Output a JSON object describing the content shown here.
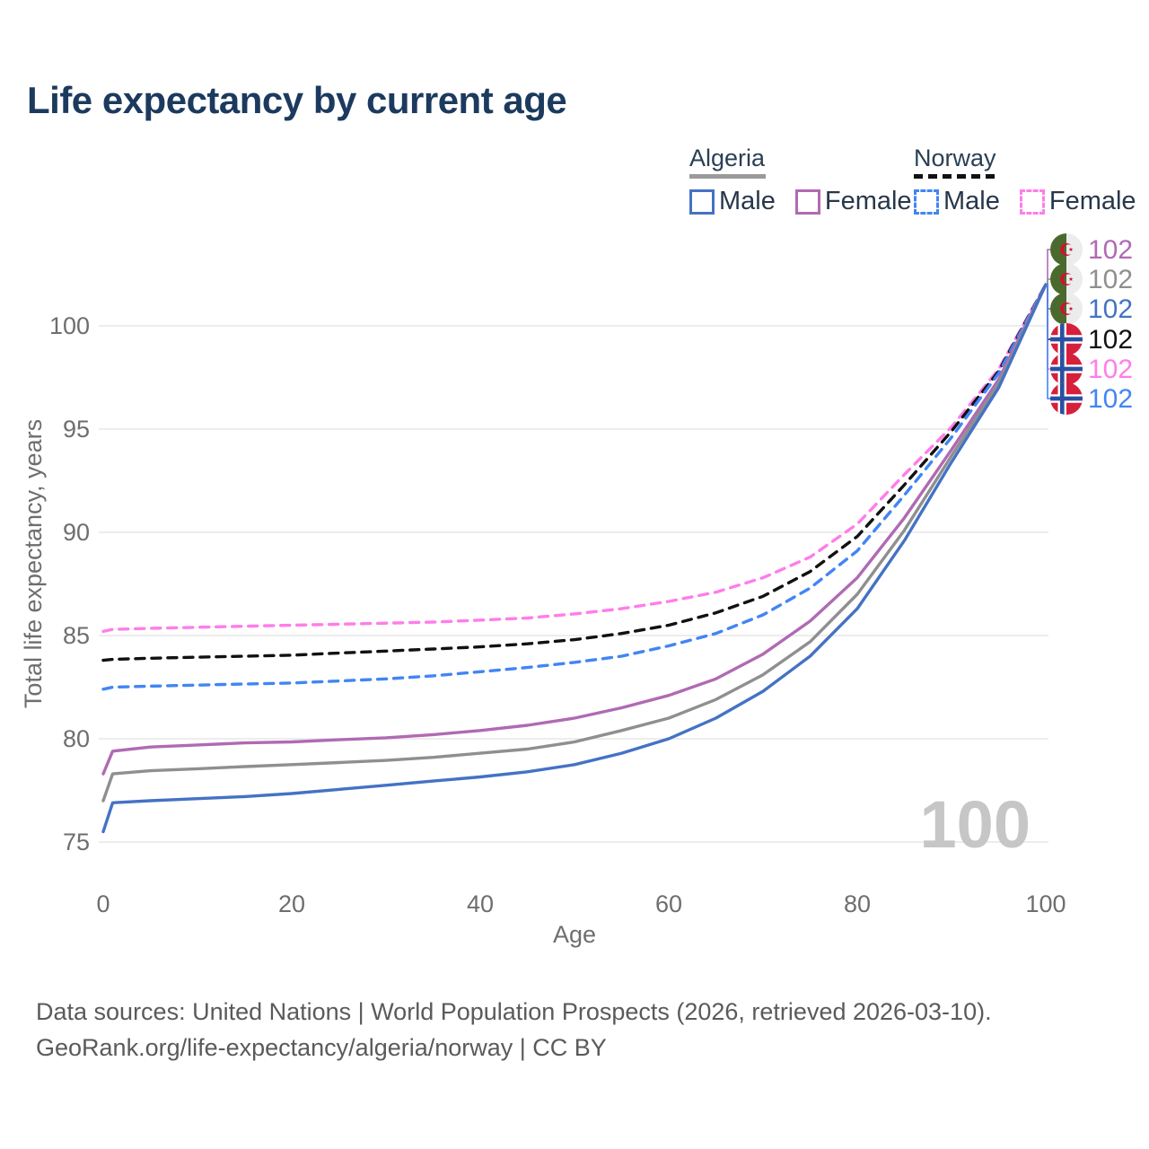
{
  "title": "Life expectancy by current age",
  "legend": {
    "groups": [
      {
        "label": "Algeria",
        "line_style": "solid",
        "line_color": "#9a9a9a",
        "items": [
          {
            "label": "Male",
            "color": "#4472c4",
            "style": "solid"
          },
          {
            "label": "Female",
            "color": "#b06ab3",
            "style": "solid"
          }
        ]
      },
      {
        "label": "Norway",
        "line_style": "dashed",
        "line_color": "#111111",
        "items": [
          {
            "label": "Male",
            "color": "#4285f4",
            "style": "dashed"
          },
          {
            "label": "Female",
            "color": "#ff7de9",
            "style": "dashed"
          }
        ]
      }
    ]
  },
  "chart_data": {
    "type": "line",
    "title": "Life expectancy by current age",
    "xlabel": "Age",
    "ylabel": "Total life expectancy, years",
    "x_ticks": [
      0,
      20,
      40,
      60,
      80,
      100
    ],
    "y_ticks": [
      75,
      80,
      85,
      90,
      95,
      100
    ],
    "xlim": [
      0,
      100
    ],
    "ylim": [
      74.5,
      103
    ],
    "grid": "horizontal",
    "legend_position": "top-right",
    "watermark": "100",
    "ages": [
      0,
      1,
      5,
      10,
      15,
      20,
      25,
      30,
      35,
      40,
      45,
      50,
      55,
      60,
      65,
      70,
      75,
      80,
      85,
      90,
      95,
      100
    ],
    "series": [
      {
        "name": "Norway Female",
        "country": "Norway",
        "sex": "Female",
        "style": "dashed",
        "color": "#ff7de9",
        "icon": "norway-flag-icon",
        "end_label": "102",
        "values": [
          85.2,
          85.3,
          85.35,
          85.4,
          85.45,
          85.5,
          85.55,
          85.6,
          85.65,
          85.75,
          85.85,
          86.05,
          86.3,
          86.65,
          87.1,
          87.8,
          88.8,
          90.4,
          92.8,
          95.1,
          97.9,
          102
        ]
      },
      {
        "name": "Norway",
        "country": "Norway",
        "sex": "Both",
        "style": "dashed",
        "color": "#111111",
        "icon": "norway-flag-icon",
        "end_label": "102",
        "values": [
          83.8,
          83.85,
          83.9,
          83.95,
          84.0,
          84.05,
          84.15,
          84.25,
          84.35,
          84.45,
          84.6,
          84.8,
          85.1,
          85.5,
          86.1,
          86.9,
          88.1,
          89.8,
          92.3,
          94.9,
          97.8,
          102
        ]
      },
      {
        "name": "Norway Male",
        "country": "Norway",
        "sex": "Male",
        "style": "dashed",
        "color": "#4285f4",
        "icon": "norway-flag-icon",
        "end_label": "102",
        "values": [
          82.4,
          82.5,
          82.55,
          82.6,
          82.65,
          82.7,
          82.8,
          82.9,
          83.05,
          83.25,
          83.45,
          83.7,
          84.0,
          84.5,
          85.1,
          86.0,
          87.3,
          89.1,
          91.8,
          94.6,
          97.7,
          102
        ]
      },
      {
        "name": "Algeria Female",
        "country": "Algeria",
        "sex": "Female",
        "style": "solid",
        "color": "#b06ab3",
        "icon": "algeria-flag-icon",
        "end_label": "102",
        "values": [
          78.3,
          79.4,
          79.6,
          79.7,
          79.8,
          79.85,
          79.95,
          80.05,
          80.2,
          80.4,
          80.65,
          81.0,
          81.5,
          82.1,
          82.9,
          84.1,
          85.7,
          87.8,
          90.7,
          94.0,
          97.4,
          102
        ]
      },
      {
        "name": "Algeria",
        "country": "Algeria",
        "sex": "Both",
        "style": "solid",
        "color": "#8f8f8f",
        "icon": "algeria-flag-icon",
        "end_label": "102",
        "values": [
          77.0,
          78.3,
          78.45,
          78.55,
          78.65,
          78.75,
          78.85,
          78.95,
          79.1,
          79.3,
          79.5,
          79.85,
          80.4,
          81.0,
          81.9,
          83.1,
          84.7,
          87.0,
          90.1,
          93.7,
          97.2,
          102
        ]
      },
      {
        "name": "Algeria Male",
        "country": "Algeria",
        "sex": "Male",
        "style": "solid",
        "color": "#4472c4",
        "icon": "algeria-flag-icon",
        "end_label": "102",
        "values": [
          75.5,
          76.9,
          77.0,
          77.1,
          77.2,
          77.35,
          77.55,
          77.75,
          77.95,
          78.15,
          78.4,
          78.75,
          79.3,
          80.0,
          81.0,
          82.3,
          84.0,
          86.3,
          89.6,
          93.4,
          97.0,
          102
        ]
      }
    ],
    "end_label_order": [
      "Algeria Female",
      "Algeria",
      "Algeria Male",
      "Norway",
      "Norway Female",
      "Norway Male"
    ]
  },
  "footer": {
    "line1": "Data sources: United Nations | World Population Prospects (2026, retrieved 2026-03-10).",
    "line2": "GeoRank.org/life-expectancy/algeria/norway | CC BY"
  }
}
